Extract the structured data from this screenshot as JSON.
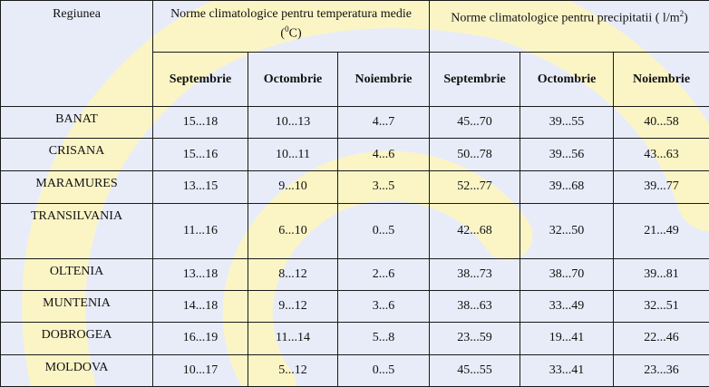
{
  "colors": {
    "background": "#e8ecf8",
    "decor_yellow": "#fbf5c6",
    "border": "#1a1a1a"
  },
  "table": {
    "header": {
      "region": "Regiunea",
      "temp_group": "Norme climatologice pentru temperatura medie",
      "temp_unit": "C",
      "temp_unit_sup": "0",
      "prec_group": "Norme climatologice pentru precipitatii ( l/m",
      "prec_unit_sup": "2",
      "prec_close": ")"
    },
    "months": [
      "Septembrie",
      "Octombrie",
      "Noiembrie",
      "Septembrie",
      "Octombrie",
      "Noiembrie"
    ],
    "rows": [
      {
        "region": "BANAT",
        "values": [
          "15...18",
          "10...13",
          "4...7",
          "45...70",
          "39...55",
          "40...58"
        ]
      },
      {
        "region": "CRISANA",
        "values": [
          "15...16",
          "10...11",
          "4...6",
          "50...78",
          "39...56",
          "43...63"
        ]
      },
      {
        "region": "MARAMURES",
        "values": [
          "13...15",
          "9...10",
          "3...5",
          "52...77",
          "39...68",
          "39...77"
        ]
      },
      {
        "region": "TRANSILVANIA",
        "values": [
          "11...16",
          "6...10",
          "0...5",
          "42...68",
          "32...50",
          "21...49"
        ]
      },
      {
        "region": "OLTENIA",
        "values": [
          "13...18",
          "8...12",
          "2...6",
          "38...73",
          "38...70",
          "39...81"
        ]
      },
      {
        "region": "MUNTENIA",
        "values": [
          "14...18",
          "9...12",
          "3...6",
          "38...63",
          "33...49",
          "32...51"
        ]
      },
      {
        "region": "DOBROGEA",
        "values": [
          "16...19",
          "11...14",
          "5...8",
          "23...59",
          "19...41",
          "22...46"
        ]
      },
      {
        "region": "MOLDOVA",
        "values": [
          "10...17",
          "5...12",
          "0...5",
          "45...55",
          "33...41",
          "23...36"
        ]
      }
    ]
  }
}
